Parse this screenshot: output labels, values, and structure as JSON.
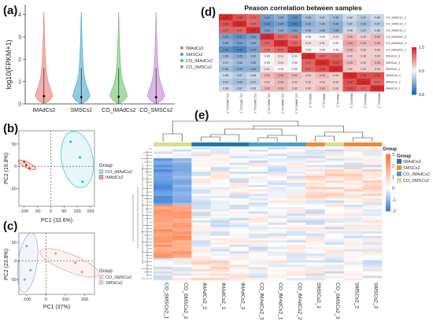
{
  "figure": {
    "panel_labels": [
      "(a)",
      "(b)",
      "(c)",
      "(d)",
      "(e)"
    ]
  },
  "chart_data": [
    {
      "id": "a",
      "type": "violin",
      "ylabel": "log10(FPKM+1)",
      "yticks": [
        0,
        1,
        2,
        3,
        4
      ],
      "ylim": [
        0,
        4.3
      ],
      "categories": [
        "IMAdCs2",
        "SMSCs2",
        "CO_IMAdCs2",
        "CO_SMSCs2"
      ],
      "colors": [
        "#e8706a",
        "#3aa0c8",
        "#5cbf5c",
        "#c07ad0"
      ],
      "medians": [
        0.35,
        0.3,
        0.32,
        0.3
      ],
      "legend": [
        "IMAdCs2",
        "SMSCs2",
        "CO_IMAdCs2",
        "CO_SMSCs2"
      ]
    },
    {
      "id": "b",
      "type": "scatter",
      "xlabel": "PC1 (33.6%)",
      "ylabel": "PC2 (19.8%)",
      "xticks": [
        -100,
        -50,
        0,
        50,
        100,
        150
      ],
      "yticks": [
        -50,
        0,
        50
      ],
      "xlim": [
        -120,
        165
      ],
      "ylim": [
        -90,
        80
      ],
      "legend_title": "Group",
      "series": [
        {
          "name": "CO_IMAdCs2",
          "color": "#2fc0d0",
          "points": [
            [
              75,
              55
            ],
            [
              120,
              -35
            ],
            [
              110,
              20
            ]
          ]
        },
        {
          "name": "IMAdCs2",
          "color": "#e03a2a",
          "points": [
            [
              -100,
              10
            ],
            [
              -80,
              -5
            ],
            [
              -92,
              3
            ]
          ]
        }
      ]
    },
    {
      "id": "c",
      "type": "scatter",
      "xlabel": "PC1 (37%)",
      "ylabel": "PC2 (23.8%)",
      "xticks": [
        -100,
        0,
        100,
        200
      ],
      "yticks": [
        -50,
        0,
        50
      ],
      "xlim": [
        -140,
        250
      ],
      "ylim": [
        -90,
        75
      ],
      "legend_title": "Group",
      "series": [
        {
          "name": "CO_SMSCs2",
          "color": "#e8a090",
          "points": [
            [
              50,
              20
            ],
            [
              150,
              -5
            ],
            [
              185,
              -30
            ]
          ]
        },
        {
          "name": "SMSCs2",
          "color": "#9aa8d8",
          "points": [
            [
              -100,
              40
            ],
            [
              -80,
              -25
            ],
            [
              -110,
              -50
            ]
          ]
        }
      ]
    },
    {
      "id": "d",
      "type": "heatmap",
      "title": "Peason correlation between samples",
      "labels": [
        "CO_SMSCs2_3",
        "CO_SMSCs2_2",
        "CO_SMSCs2_1",
        "CO_IMAdCs2_3",
        "CO_IMAdCs2_2",
        "CO_IMAdCs2_1",
        "SMSCs2_3",
        "SMSCs2_2",
        "SMSCs2_1",
        "IMAdCs2_3",
        "IMAdCs2_2",
        "IMAdCs2_1"
      ],
      "colorbar_ticks": [
        1.0,
        0.9,
        0.8
      ],
      "values": [
        [
          1.0,
          0.98,
          0.97,
          0.84,
          0.85,
          0.83,
          0.86,
          0.87,
          0.86,
          0.88,
          0.87,
          0.88
        ],
        [
          0.98,
          1.0,
          0.97,
          0.83,
          0.84,
          0.82,
          0.85,
          0.86,
          0.85,
          0.87,
          0.86,
          0.87
        ],
        [
          0.97,
          0.97,
          1.0,
          0.84,
          0.85,
          0.84,
          0.86,
          0.86,
          0.85,
          0.88,
          0.87,
          0.88
        ],
        [
          0.84,
          0.83,
          0.84,
          1.0,
          0.97,
          0.96,
          0.9,
          0.9,
          0.91,
          0.93,
          0.92,
          0.93
        ],
        [
          0.85,
          0.84,
          0.85,
          0.97,
          1.0,
          0.97,
          0.91,
          0.91,
          0.9,
          0.94,
          0.93,
          0.93
        ],
        [
          0.83,
          0.82,
          0.84,
          0.96,
          0.97,
          1.0,
          0.9,
          0.9,
          0.9,
          0.93,
          0.92,
          0.92
        ],
        [
          0.86,
          0.85,
          0.86,
          0.9,
          0.91,
          0.9,
          1.0,
          0.97,
          0.97,
          0.92,
          0.92,
          0.92
        ],
        [
          0.87,
          0.86,
          0.86,
          0.9,
          0.91,
          0.9,
          0.97,
          1.0,
          0.98,
          0.93,
          0.92,
          0.93
        ],
        [
          0.86,
          0.85,
          0.85,
          0.91,
          0.9,
          0.9,
          0.97,
          0.98,
          1.0,
          0.92,
          0.92,
          0.92
        ],
        [
          0.88,
          0.87,
          0.88,
          0.93,
          0.94,
          0.93,
          0.92,
          0.93,
          0.92,
          1.0,
          0.98,
          0.98
        ],
        [
          0.87,
          0.86,
          0.87,
          0.92,
          0.93,
          0.92,
          0.92,
          0.92,
          0.92,
          0.98,
          1.0,
          0.97
        ],
        [
          0.88,
          0.87,
          0.88,
          0.93,
          0.93,
          0.92,
          0.92,
          0.93,
          0.92,
          0.98,
          0.97,
          1.0
        ]
      ]
    },
    {
      "id": "e",
      "type": "heatmap",
      "columns": [
        "CO_SMSCs2_1",
        "CO_SMSCs2_2",
        "IMAdCs2_2",
        "IMAdCs2_1",
        "IMAdCs2_3",
        "CO_IMAdCs2_3",
        "CO_IMAdCs2_1",
        "CO_IMAdCs2_2",
        "SMSCs2_1",
        "CO_SMSCs2_3",
        "SMSCs2_2",
        "SMSCs2_3"
      ],
      "column_groups": [
        "CO_SMSCs2",
        "CO_SMSCs2",
        "IMAdCs2",
        "IMAdCs2",
        "IMAdCs2",
        "CO_IMAdCs2",
        "CO_IMAdCs2",
        "CO_IMAdCs2",
        "SMSCs2",
        "CO_SMSCs2",
        "SMSCs2",
        "SMSCs2"
      ],
      "colorbar_ticks": [
        3,
        2,
        1,
        0,
        -1,
        -2
      ],
      "legend_title": "Group",
      "group_legend": [
        {
          "name": "IMAdCs2",
          "color": "#1f78a8"
        },
        {
          "name": "SMSCs2",
          "color": "#f08a3a"
        },
        {
          "name": "CO_IMAdCs2",
          "color": "#4aa0c8"
        },
        {
          "name": "CO_SMSCs2",
          "color": "#d8e08a"
        }
      ]
    }
  ]
}
